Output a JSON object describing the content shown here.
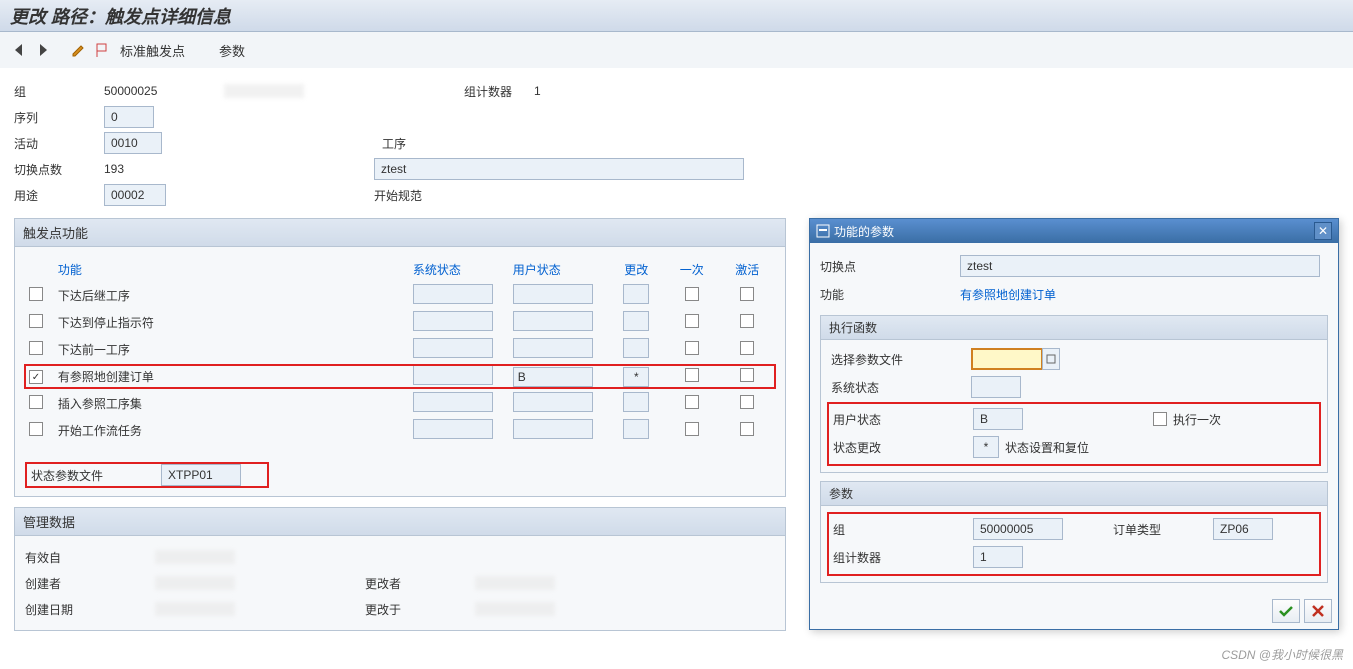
{
  "title": "更改 路径：触发点详细信息",
  "toolbar": {
    "std_trigger": "标准触发点",
    "params": "参数"
  },
  "header": {
    "group_label": "组",
    "group_value": "50000025",
    "counter_label": "组计数器",
    "counter_value": "1",
    "sequence_label": "序列",
    "sequence_value": "0",
    "activity_label": "活动",
    "activity_value": "0010",
    "operation_label": "工序",
    "switch_label": "切换点数",
    "switch_value": "193",
    "switch_name": "ztest",
    "usage_label": "用途",
    "usage_value": "00002",
    "usage_name": "开始规范"
  },
  "func_panel": {
    "title": "触发点功能",
    "columns": {
      "func": "功能",
      "sys_status": "系统状态",
      "user_status": "用户状态",
      "change": "更改",
      "once": "一次",
      "activate": "激活"
    },
    "rows": [
      {
        "checked": false,
        "label": "下达后继工序",
        "sys": "",
        "usr": "",
        "chg": "",
        "highlight": false
      },
      {
        "checked": false,
        "label": "下达到停止指示符",
        "sys": "",
        "usr": "",
        "chg": "",
        "highlight": false
      },
      {
        "checked": false,
        "label": "下达前一工序",
        "sys": "",
        "usr": "",
        "chg": "",
        "highlight": false
      },
      {
        "checked": true,
        "label": "有参照地创建订单",
        "sys": "",
        "usr": "B",
        "chg": "*",
        "highlight": true
      },
      {
        "checked": false,
        "label": "插入参照工序集",
        "sys": "",
        "usr": "",
        "chg": "",
        "highlight": false
      },
      {
        "checked": false,
        "label": "开始工作流任务",
        "sys": "",
        "usr": "",
        "chg": "",
        "highlight": false
      }
    ],
    "status_file_label": "状态参数文件",
    "status_file_value": "XTPP01"
  },
  "mgmt_panel": {
    "title": "管理数据",
    "valid_from": "有效自",
    "created_by": "创建者",
    "created_on": "创建日期",
    "changed_by": "更改者",
    "changed_on": "更改于"
  },
  "popup": {
    "title": "功能的参数",
    "switch_label": "切换点",
    "switch_value": "ztest",
    "func_label": "功能",
    "func_value": "有参照地创建订单",
    "func_color": "#0060d0",
    "exec_title": "执行函数",
    "select_param_label": "选择参数文件",
    "sys_status_label": "系统状态",
    "user_status_label": "用户状态",
    "user_status_value": "B",
    "exec_once_label": "执行一次",
    "status_change_label": "状态更改",
    "status_change_value": "*",
    "status_change_text": "状态设置和复位",
    "params_title": "参数",
    "group_label": "组",
    "group_value": "50000005",
    "order_type_label": "订单类型",
    "order_type_value": "ZP06",
    "counter_label": "组计数器",
    "counter_value": "1",
    "highlight_color": "#e02020"
  },
  "watermark": "CSDN @我小时候很黑",
  "colors": {
    "header_bg": "#e0e8f2",
    "input_bg": "#eaf1f8",
    "link": "#0060d0"
  }
}
